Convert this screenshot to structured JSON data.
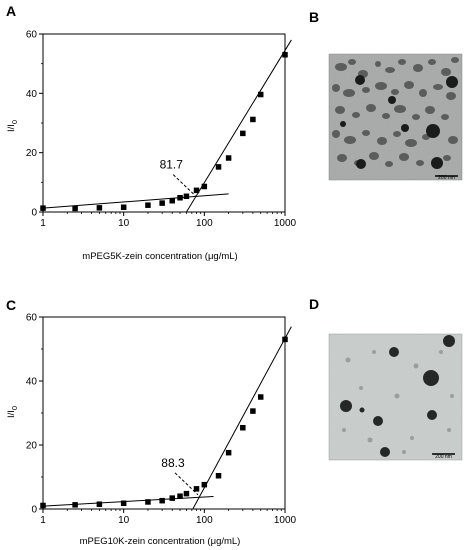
{
  "panels": [
    {
      "letter": "A"
    },
    {
      "letter": "B",
      "scale_bar": "200 nm"
    },
    {
      "letter": "C"
    },
    {
      "letter": "D",
      "scale_bar": "200 nm"
    }
  ],
  "chart_data": [
    {
      "type": "scatter",
      "panel": "A",
      "xlabel": "mPEG5K-zein concentration (μg/mL)",
      "ylabel": "I/I",
      "ylabel_sub": "0",
      "x_scale": "log",
      "xlim": [
        1,
        1000
      ],
      "ylim": [
        0,
        60
      ],
      "x_ticks": [
        1,
        10,
        100,
        1000
      ],
      "y_ticks": [
        0,
        20,
        40,
        60
      ],
      "points": [
        {
          "x": 1,
          "y": 1.3
        },
        {
          "x": 2.5,
          "y": 1.2
        },
        {
          "x": 5,
          "y": 1.4
        },
        {
          "x": 10,
          "y": 1.6
        },
        {
          "x": 20,
          "y": 2.3
        },
        {
          "x": 30,
          "y": 3.0
        },
        {
          "x": 40,
          "y": 3.8
        },
        {
          "x": 50,
          "y": 4.8
        },
        {
          "x": 60,
          "y": 5.3
        },
        {
          "x": 80,
          "y": 7.3
        },
        {
          "x": 100,
          "y": 8.6
        },
        {
          "x": 150,
          "y": 15.2
        },
        {
          "x": 200,
          "y": 18.2
        },
        {
          "x": 300,
          "y": 26.5
        },
        {
          "x": 400,
          "y": 31.2
        },
        {
          "x": 500,
          "y": 39.6
        },
        {
          "x": 1000,
          "y": 53.0
        }
      ],
      "fit_lines": [
        {
          "from": [
            1,
            1.3
          ],
          "to": [
            200,
            6.1
          ]
        },
        {
          "from": [
            60,
            0
          ],
          "to": [
            1200,
            58
          ]
        }
      ],
      "annotation": {
        "text": "81.7",
        "x": 81.7,
        "y": 4.5
      }
    },
    {
      "type": "scatter",
      "panel": "C",
      "xlabel": "mPEG10K-zein concentration (μg/mL)",
      "ylabel": "I/I",
      "ylabel_sub": "0",
      "x_scale": "log",
      "xlim": [
        1,
        1000
      ],
      "ylim": [
        0,
        60
      ],
      "x_ticks": [
        1,
        10,
        100,
        1000
      ],
      "y_ticks": [
        0,
        20,
        40,
        60
      ],
      "points": [
        {
          "x": 1,
          "y": 1.1
        },
        {
          "x": 2.5,
          "y": 1.3
        },
        {
          "x": 5,
          "y": 1.5
        },
        {
          "x": 10,
          "y": 1.8
        },
        {
          "x": 20,
          "y": 2.2
        },
        {
          "x": 30,
          "y": 2.6
        },
        {
          "x": 40,
          "y": 3.4
        },
        {
          "x": 50,
          "y": 4.0
        },
        {
          "x": 60,
          "y": 4.8
        },
        {
          "x": 80,
          "y": 6.3
        },
        {
          "x": 100,
          "y": 7.6
        },
        {
          "x": 150,
          "y": 10.4
        },
        {
          "x": 200,
          "y": 17.6
        },
        {
          "x": 300,
          "y": 25.4
        },
        {
          "x": 400,
          "y": 30.6
        },
        {
          "x": 500,
          "y": 35.0
        },
        {
          "x": 1000,
          "y": 53.0
        }
      ],
      "fit_lines": [
        {
          "from": [
            1,
            0.9
          ],
          "to": [
            130,
            3.9
          ]
        },
        {
          "from": [
            72,
            0
          ],
          "to": [
            1200,
            57
          ]
        }
      ],
      "annotation": {
        "text": "88.3",
        "x": 88.3,
        "y": 3.5
      }
    }
  ]
}
